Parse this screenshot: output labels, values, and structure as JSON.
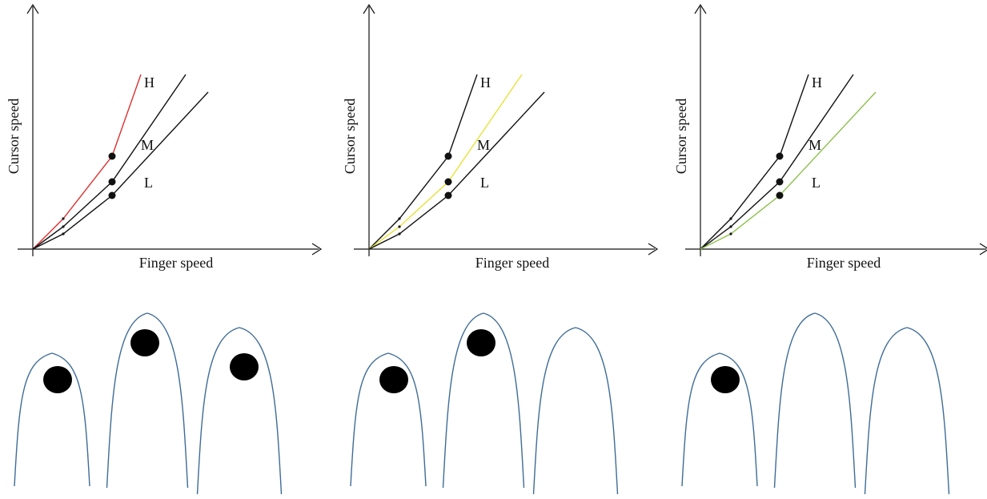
{
  "colors": {
    "axis": "#111111",
    "curve_default": "#111111",
    "finger_outline": "#3e6c95",
    "contact_dot": "#000000"
  },
  "panels": [
    {
      "xlabel": "Finger speed",
      "ylabel": "Cursor speed",
      "highlight": "H",
      "highlight_color": "#e03030",
      "curve_labels": [
        "H",
        "M",
        "L"
      ],
      "fingers": [
        {
          "contact": true
        },
        {
          "contact": true
        },
        {
          "contact": true
        }
      ]
    },
    {
      "xlabel": "Finger speed",
      "ylabel": "Cursor speed",
      "highlight": "M",
      "highlight_color": "#e8e23a",
      "curve_labels": [
        "H",
        "M",
        "L"
      ],
      "fingers": [
        {
          "contact": true
        },
        {
          "contact": true
        },
        {
          "contact": false
        }
      ]
    },
    {
      "xlabel": "Finger speed",
      "ylabel": "Cursor speed",
      "highlight": "L",
      "highlight_color": "#8cc04a",
      "curve_labels": [
        "H",
        "M",
        "L"
      ],
      "fingers": [
        {
          "contact": true
        },
        {
          "contact": false
        },
        {
          "contact": false
        }
      ]
    }
  ]
}
